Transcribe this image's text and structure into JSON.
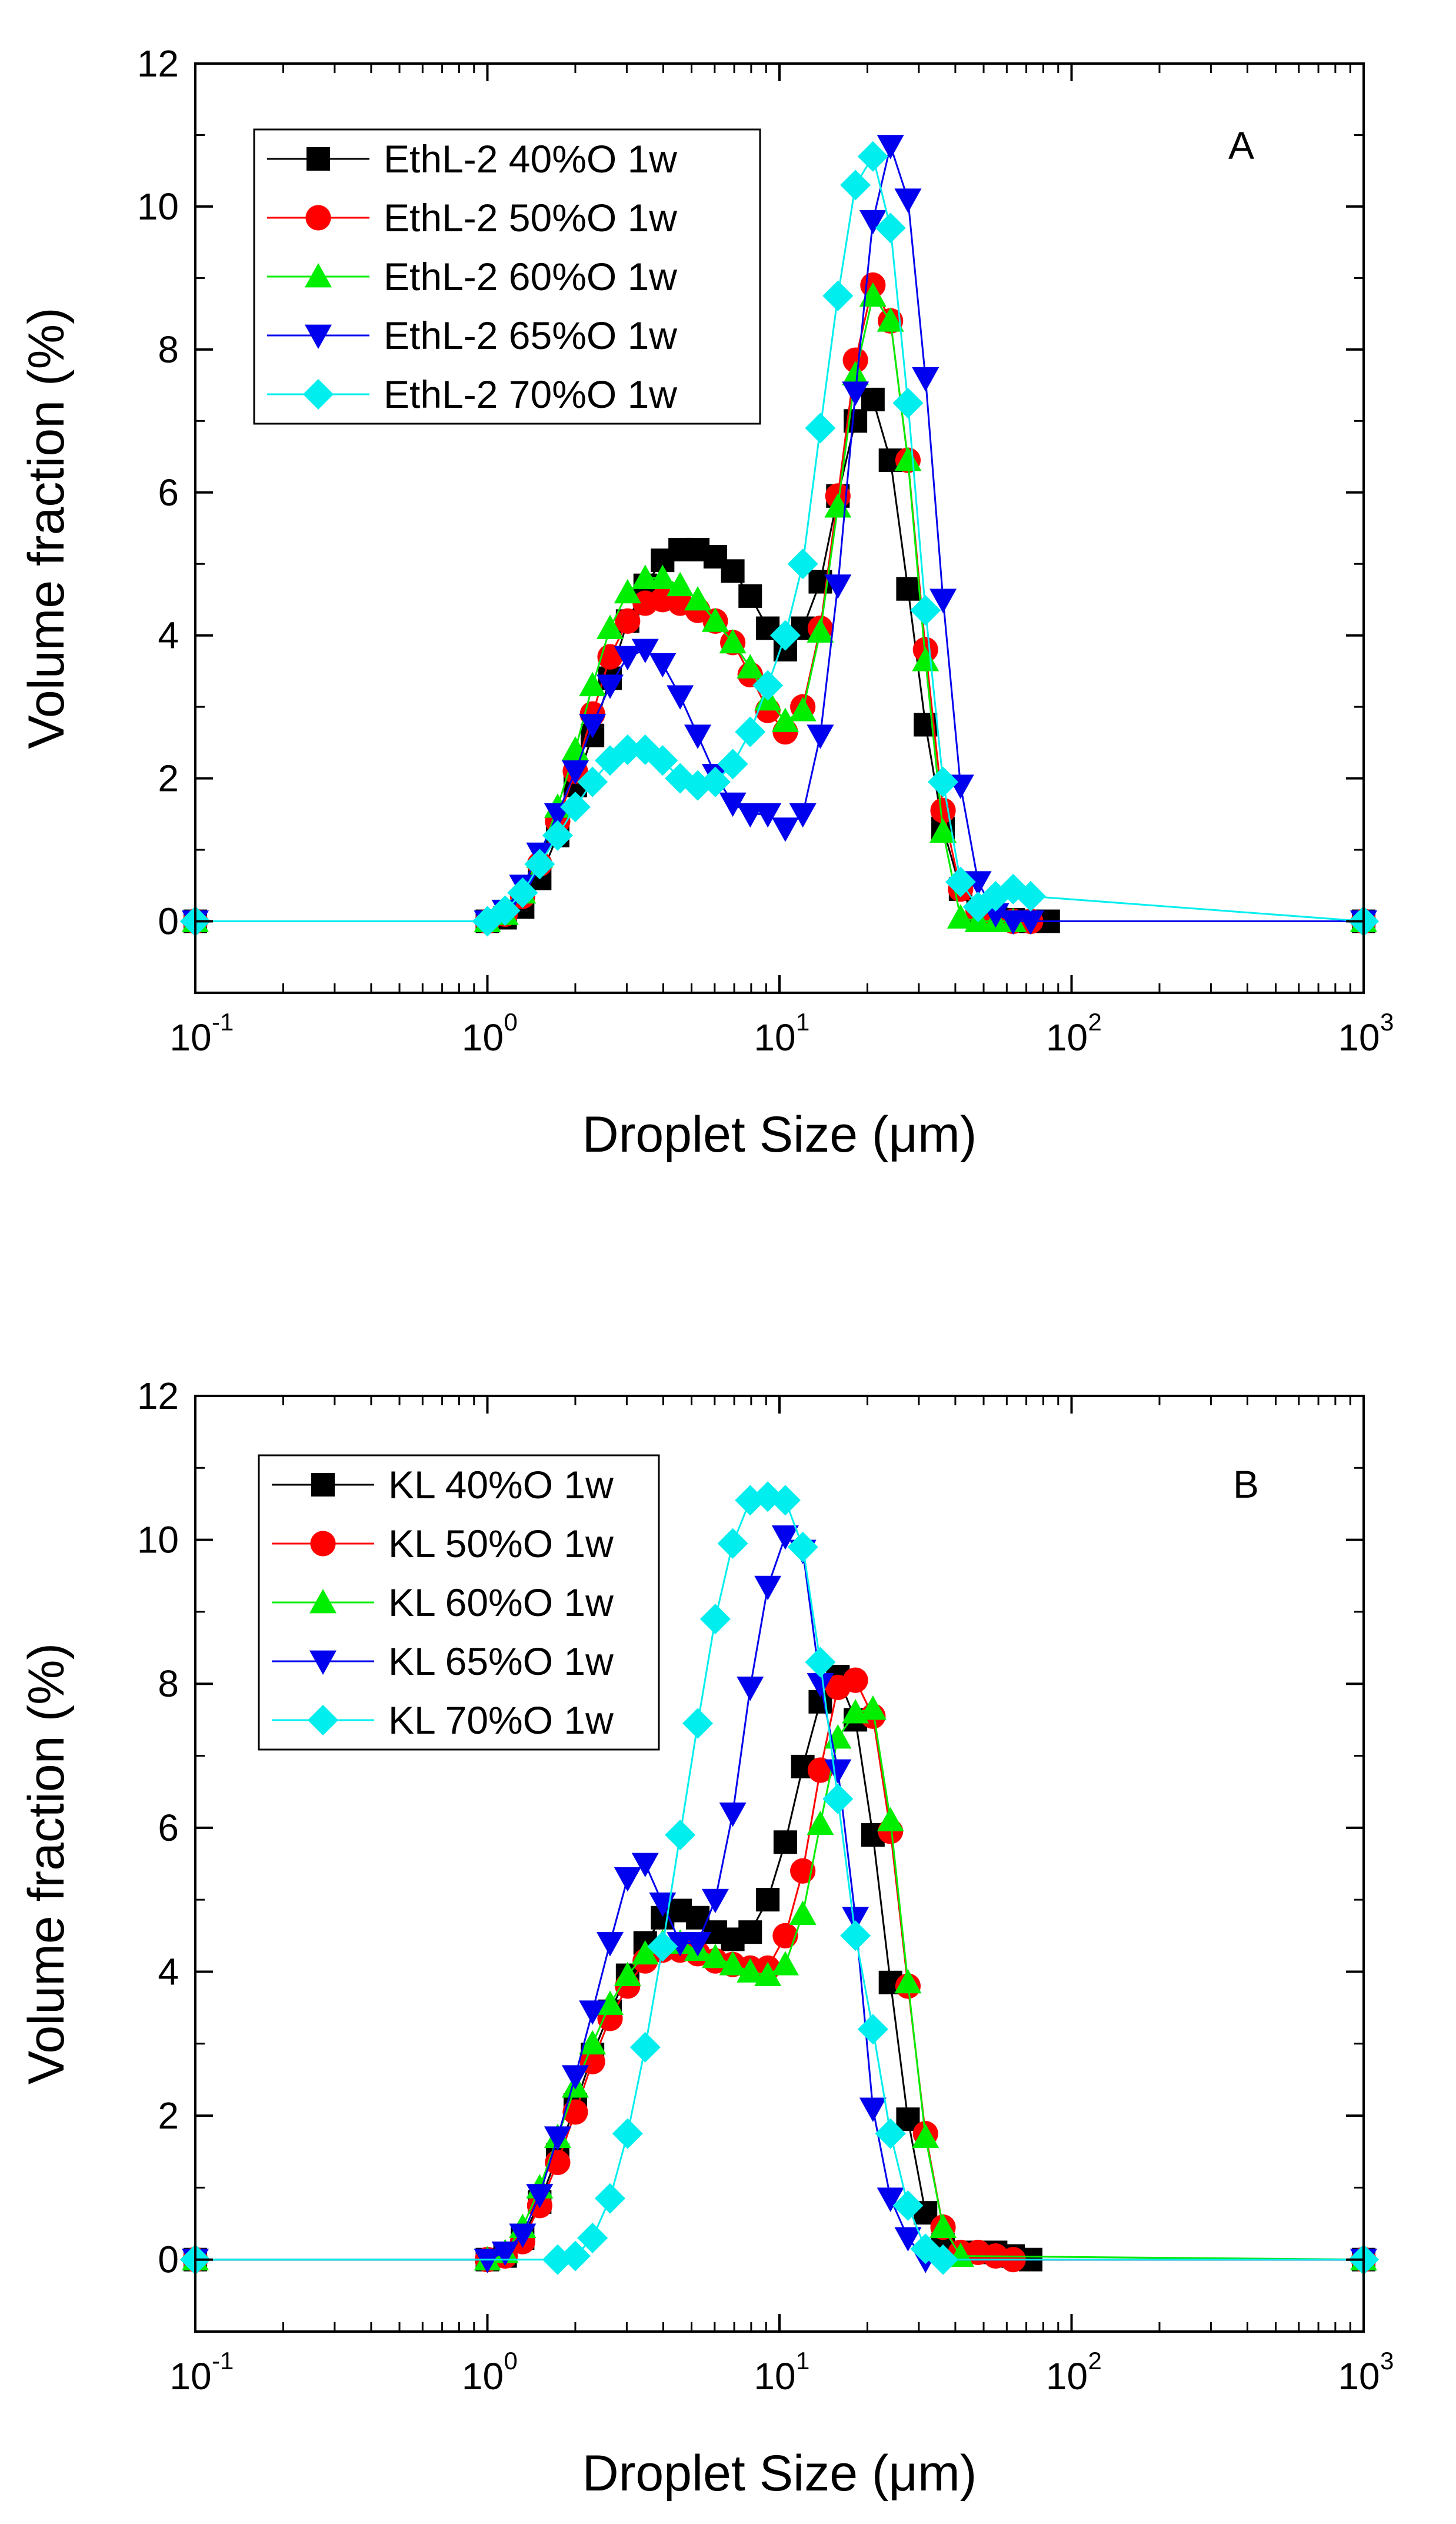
{
  "chart_data": [
    {
      "type": "scatter",
      "panel_label": "A",
      "xlabel": "Droplet Size (μm)",
      "ylabel": "Volume fraction (%)",
      "x_scale": "log",
      "xlim": [
        0.1,
        1000
      ],
      "ylim": [
        -1,
        12
      ],
      "x_ticks": [
        {
          "base": "10",
          "exp": "-1",
          "value": 0.1
        },
        {
          "base": "10",
          "exp": "0",
          "value": 1
        },
        {
          "base": "10",
          "exp": "1",
          "value": 10
        },
        {
          "base": "10",
          "exp": "2",
          "value": 100
        },
        {
          "base": "10",
          "exp": "3",
          "value": 1000
        }
      ],
      "y_ticks": [
        "0",
        "2",
        "4",
        "6",
        "8",
        "10",
        "12"
      ],
      "grid": false,
      "legend_position": "top-left",
      "series": [
        {
          "name": "EthL-2 40%O 1w",
          "color": "#000000",
          "marker": "square",
          "x": [
            0.1,
            1.0,
            1.15,
            1.32,
            1.51,
            1.74,
            2.0,
            2.29,
            2.63,
            3.02,
            3.47,
            3.98,
            4.57,
            5.25,
            6.03,
            6.92,
            7.94,
            9.12,
            10.47,
            12.02,
            13.8,
            15.85,
            18.2,
            20.89,
            23.99,
            27.54,
            31.62,
            36.31,
            41.69,
            47.86,
            54.95,
            63.1,
            72.44,
            83.18,
            1000
          ],
          "y": [
            0,
            0,
            0.05,
            0.2,
            0.6,
            1.2,
            1.9,
            2.6,
            3.4,
            4.2,
            4.7,
            5.05,
            5.2,
            5.2,
            5.1,
            4.9,
            4.55,
            4.1,
            3.8,
            4.1,
            4.75,
            5.95,
            7.0,
            7.3,
            6.45,
            4.65,
            2.75,
            1.3,
            0.45,
            0.15,
            0.05,
            0.02,
            0,
            0,
            0
          ]
        },
        {
          "name": "EthL-2 50%O 1w",
          "color": "#ff0000",
          "marker": "circle",
          "x": [
            0.1,
            1.0,
            1.15,
            1.32,
            1.51,
            1.74,
            2.0,
            2.29,
            2.63,
            3.02,
            3.47,
            3.98,
            4.57,
            5.25,
            6.03,
            6.92,
            7.94,
            9.12,
            10.47,
            12.02,
            13.8,
            15.85,
            18.2,
            20.89,
            23.99,
            27.54,
            31.62,
            36.31,
            41.69,
            47.86,
            54.95,
            63.1,
            72.44,
            1000
          ],
          "y": [
            0,
            0,
            0.1,
            0.35,
            0.8,
            1.4,
            2.1,
            2.9,
            3.7,
            4.2,
            4.45,
            4.5,
            4.45,
            4.35,
            4.2,
            3.9,
            3.45,
            2.95,
            2.65,
            3.0,
            4.1,
            5.95,
            7.85,
            8.9,
            8.4,
            6.45,
            3.8,
            1.55,
            0.45,
            0.15,
            0.05,
            0,
            0,
            0
          ]
        },
        {
          "name": "EthL-2 60%O 1w",
          "color": "#00ee00",
          "marker": "triangle-up",
          "x": [
            0.1,
            1.0,
            1.15,
            1.32,
            1.51,
            1.74,
            2.0,
            2.29,
            2.63,
            3.02,
            3.47,
            3.98,
            4.57,
            5.25,
            6.03,
            6.92,
            7.94,
            9.12,
            10.47,
            12.02,
            13.8,
            15.85,
            18.2,
            20.89,
            23.99,
            27.54,
            31.62,
            36.31,
            41.69,
            47.86,
            54.95,
            63.1,
            1000
          ],
          "y": [
            0,
            0,
            0.1,
            0.4,
            0.9,
            1.6,
            2.4,
            3.3,
            4.1,
            4.6,
            4.8,
            4.8,
            4.7,
            4.5,
            4.2,
            3.9,
            3.55,
            3.1,
            2.8,
            2.95,
            4.05,
            5.8,
            7.65,
            8.75,
            8.4,
            6.45,
            3.65,
            1.25,
            0.05,
            0,
            0,
            0,
            0
          ]
        },
        {
          "name": "EthL-2 65%O 1w",
          "color": "#0000ee",
          "marker": "triangle-down",
          "x": [
            0.1,
            1.0,
            1.15,
            1.32,
            1.51,
            1.74,
            2.0,
            2.29,
            2.63,
            3.02,
            3.47,
            3.98,
            4.57,
            5.25,
            6.03,
            6.92,
            7.94,
            9.12,
            10.47,
            12.02,
            13.8,
            15.85,
            18.2,
            20.89,
            23.99,
            27.54,
            31.62,
            36.31,
            41.69,
            47.86,
            54.95,
            63.1,
            72.44,
            1000
          ],
          "y": [
            0,
            0,
            0.15,
            0.5,
            0.95,
            1.5,
            2.1,
            2.75,
            3.3,
            3.7,
            3.8,
            3.6,
            3.15,
            2.6,
            2.05,
            1.65,
            1.5,
            1.5,
            1.3,
            1.5,
            2.6,
            4.7,
            7.4,
            9.8,
            10.85,
            10.1,
            7.6,
            4.5,
            1.9,
            0.55,
            0.1,
            0,
            0,
            0
          ]
        },
        {
          "name": "EthL-2 70%O 1w",
          "color": "#00eeee",
          "marker": "diamond",
          "x": [
            0.1,
            1.0,
            1.15,
            1.32,
            1.51,
            1.74,
            2.0,
            2.29,
            2.63,
            3.02,
            3.47,
            3.98,
            4.57,
            5.25,
            6.03,
            6.92,
            7.94,
            9.12,
            10.47,
            12.02,
            13.8,
            15.85,
            18.2,
            20.89,
            23.99,
            27.54,
            31.62,
            36.31,
            41.69,
            47.86,
            54.95,
            63.1,
            72.44,
            1000
          ],
          "y": [
            0,
            0,
            0.15,
            0.4,
            0.8,
            1.2,
            1.6,
            1.95,
            2.25,
            2.4,
            2.4,
            2.25,
            2.0,
            1.9,
            1.95,
            2.2,
            2.65,
            3.3,
            4.0,
            5.0,
            6.9,
            8.75,
            10.3,
            10.7,
            9.7,
            7.25,
            4.35,
            1.95,
            0.55,
            0.2,
            0.35,
            0.45,
            0.35,
            0
          ]
        }
      ]
    },
    {
      "type": "scatter",
      "panel_label": "B",
      "xlabel": "Droplet Size (μm)",
      "ylabel": "Volume fraction (%)",
      "x_scale": "log",
      "xlim": [
        0.1,
        1000
      ],
      "ylim": [
        -1,
        12
      ],
      "x_ticks": [
        {
          "base": "10",
          "exp": "-1",
          "value": 0.1
        },
        {
          "base": "10",
          "exp": "0",
          "value": 1
        },
        {
          "base": "10",
          "exp": "1",
          "value": 10
        },
        {
          "base": "10",
          "exp": "2",
          "value": 100
        },
        {
          "base": "10",
          "exp": "3",
          "value": 1000
        }
      ],
      "y_ticks": [
        "0",
        "2",
        "4",
        "6",
        "8",
        "10",
        "12"
      ],
      "grid": false,
      "legend_position": "top-left",
      "series": [
        {
          "name": "KL 40%O 1w",
          "color": "#000000",
          "marker": "square",
          "x": [
            0.1,
            1.0,
            1.15,
            1.32,
            1.51,
            1.74,
            2.0,
            2.29,
            2.63,
            3.02,
            3.47,
            3.98,
            4.57,
            5.25,
            6.03,
            6.92,
            7.94,
            9.12,
            10.47,
            12.02,
            13.8,
            15.85,
            18.2,
            20.89,
            23.99,
            27.54,
            31.62,
            36.31,
            41.69,
            47.86,
            54.95,
            63.1,
            72.44,
            1000
          ],
          "y": [
            0,
            0,
            0.05,
            0.3,
            0.8,
            1.45,
            2.15,
            2.85,
            3.45,
            3.95,
            4.4,
            4.75,
            4.85,
            4.75,
            4.55,
            4.45,
            4.55,
            5.0,
            5.8,
            6.85,
            7.75,
            8.1,
            7.5,
            5.9,
            3.85,
            1.95,
            0.65,
            0.2,
            0.1,
            0.1,
            0.1,
            0.05,
            0,
            0
          ]
        },
        {
          "name": "KL 50%O 1w",
          "color": "#ff0000",
          "marker": "circle",
          "x": [
            0.1,
            1.0,
            1.15,
            1.32,
            1.51,
            1.74,
            2.0,
            2.29,
            2.63,
            3.02,
            3.47,
            3.98,
            4.57,
            5.25,
            6.03,
            6.92,
            7.94,
            9.12,
            10.47,
            12.02,
            13.8,
            15.85,
            18.2,
            20.89,
            23.99,
            27.54,
            31.62,
            36.31,
            41.69,
            47.86,
            54.95,
            63.1,
            1000
          ],
          "y": [
            0,
            0,
            0.05,
            0.25,
            0.75,
            1.35,
            2.05,
            2.75,
            3.35,
            3.8,
            4.15,
            4.3,
            4.3,
            4.25,
            4.15,
            4.1,
            4.05,
            4.05,
            4.5,
            5.4,
            6.8,
            7.95,
            8.05,
            7.55,
            5.95,
            3.8,
            1.75,
            0.45,
            0.1,
            0.1,
            0.05,
            0,
            0
          ]
        },
        {
          "name": "KL 60%O 1w",
          "color": "#00ee00",
          "marker": "triangle-up",
          "x": [
            0.1,
            1.0,
            1.15,
            1.32,
            1.51,
            1.74,
            2.0,
            2.29,
            2.63,
            3.02,
            3.47,
            3.98,
            4.57,
            5.25,
            6.03,
            6.92,
            7.94,
            9.12,
            10.47,
            12.02,
            13.8,
            15.85,
            18.2,
            20.89,
            23.99,
            27.54,
            31.62,
            36.31,
            41.69,
            1000
          ],
          "y": [
            0,
            0,
            0.1,
            0.45,
            1.0,
            1.7,
            2.4,
            3.0,
            3.55,
            3.95,
            4.25,
            4.4,
            4.4,
            4.3,
            4.2,
            4.1,
            4.0,
            3.95,
            4.1,
            4.8,
            6.05,
            7.25,
            7.6,
            7.65,
            6.1,
            3.85,
            1.7,
            0.45,
            0.05,
            0
          ]
        },
        {
          "name": "KL 65%O 1w",
          "color": "#0000ee",
          "marker": "triangle-down",
          "x": [
            0.1,
            1.0,
            1.15,
            1.32,
            1.51,
            1.74,
            2.0,
            2.29,
            2.63,
            3.02,
            3.47,
            3.98,
            4.57,
            5.25,
            6.03,
            6.92,
            7.94,
            9.12,
            10.47,
            12.02,
            13.8,
            15.85,
            18.2,
            20.89,
            23.99,
            27.54,
            31.62,
            1000
          ],
          "y": [
            0,
            0,
            0.1,
            0.35,
            0.9,
            1.7,
            2.55,
            3.45,
            4.4,
            5.3,
            5.5,
            4.95,
            4.4,
            4.4,
            5.0,
            6.2,
            7.95,
            9.35,
            10.05,
            9.85,
            8.0,
            6.8,
            4.75,
            2.1,
            0.85,
            0.3,
            0,
            0
          ]
        },
        {
          "name": "KL 70%O 1w",
          "color": "#00eeee",
          "marker": "diamond",
          "x": [
            0.1,
            1.74,
            2.0,
            2.29,
            2.63,
            3.02,
            3.47,
            3.98,
            4.57,
            5.25,
            6.03,
            6.92,
            7.94,
            9.12,
            10.47,
            12.02,
            13.8,
            15.85,
            18.2,
            20.89,
            23.99,
            27.54,
            31.62,
            36.31,
            1000
          ],
          "y": [
            0,
            0,
            0.05,
            0.3,
            0.85,
            1.75,
            2.95,
            4.35,
            5.9,
            7.45,
            8.9,
            9.95,
            10.55,
            10.6,
            10.55,
            9.9,
            8.3,
            6.4,
            4.5,
            3.2,
            1.75,
            0.75,
            0.15,
            0,
            0
          ]
        }
      ]
    }
  ]
}
